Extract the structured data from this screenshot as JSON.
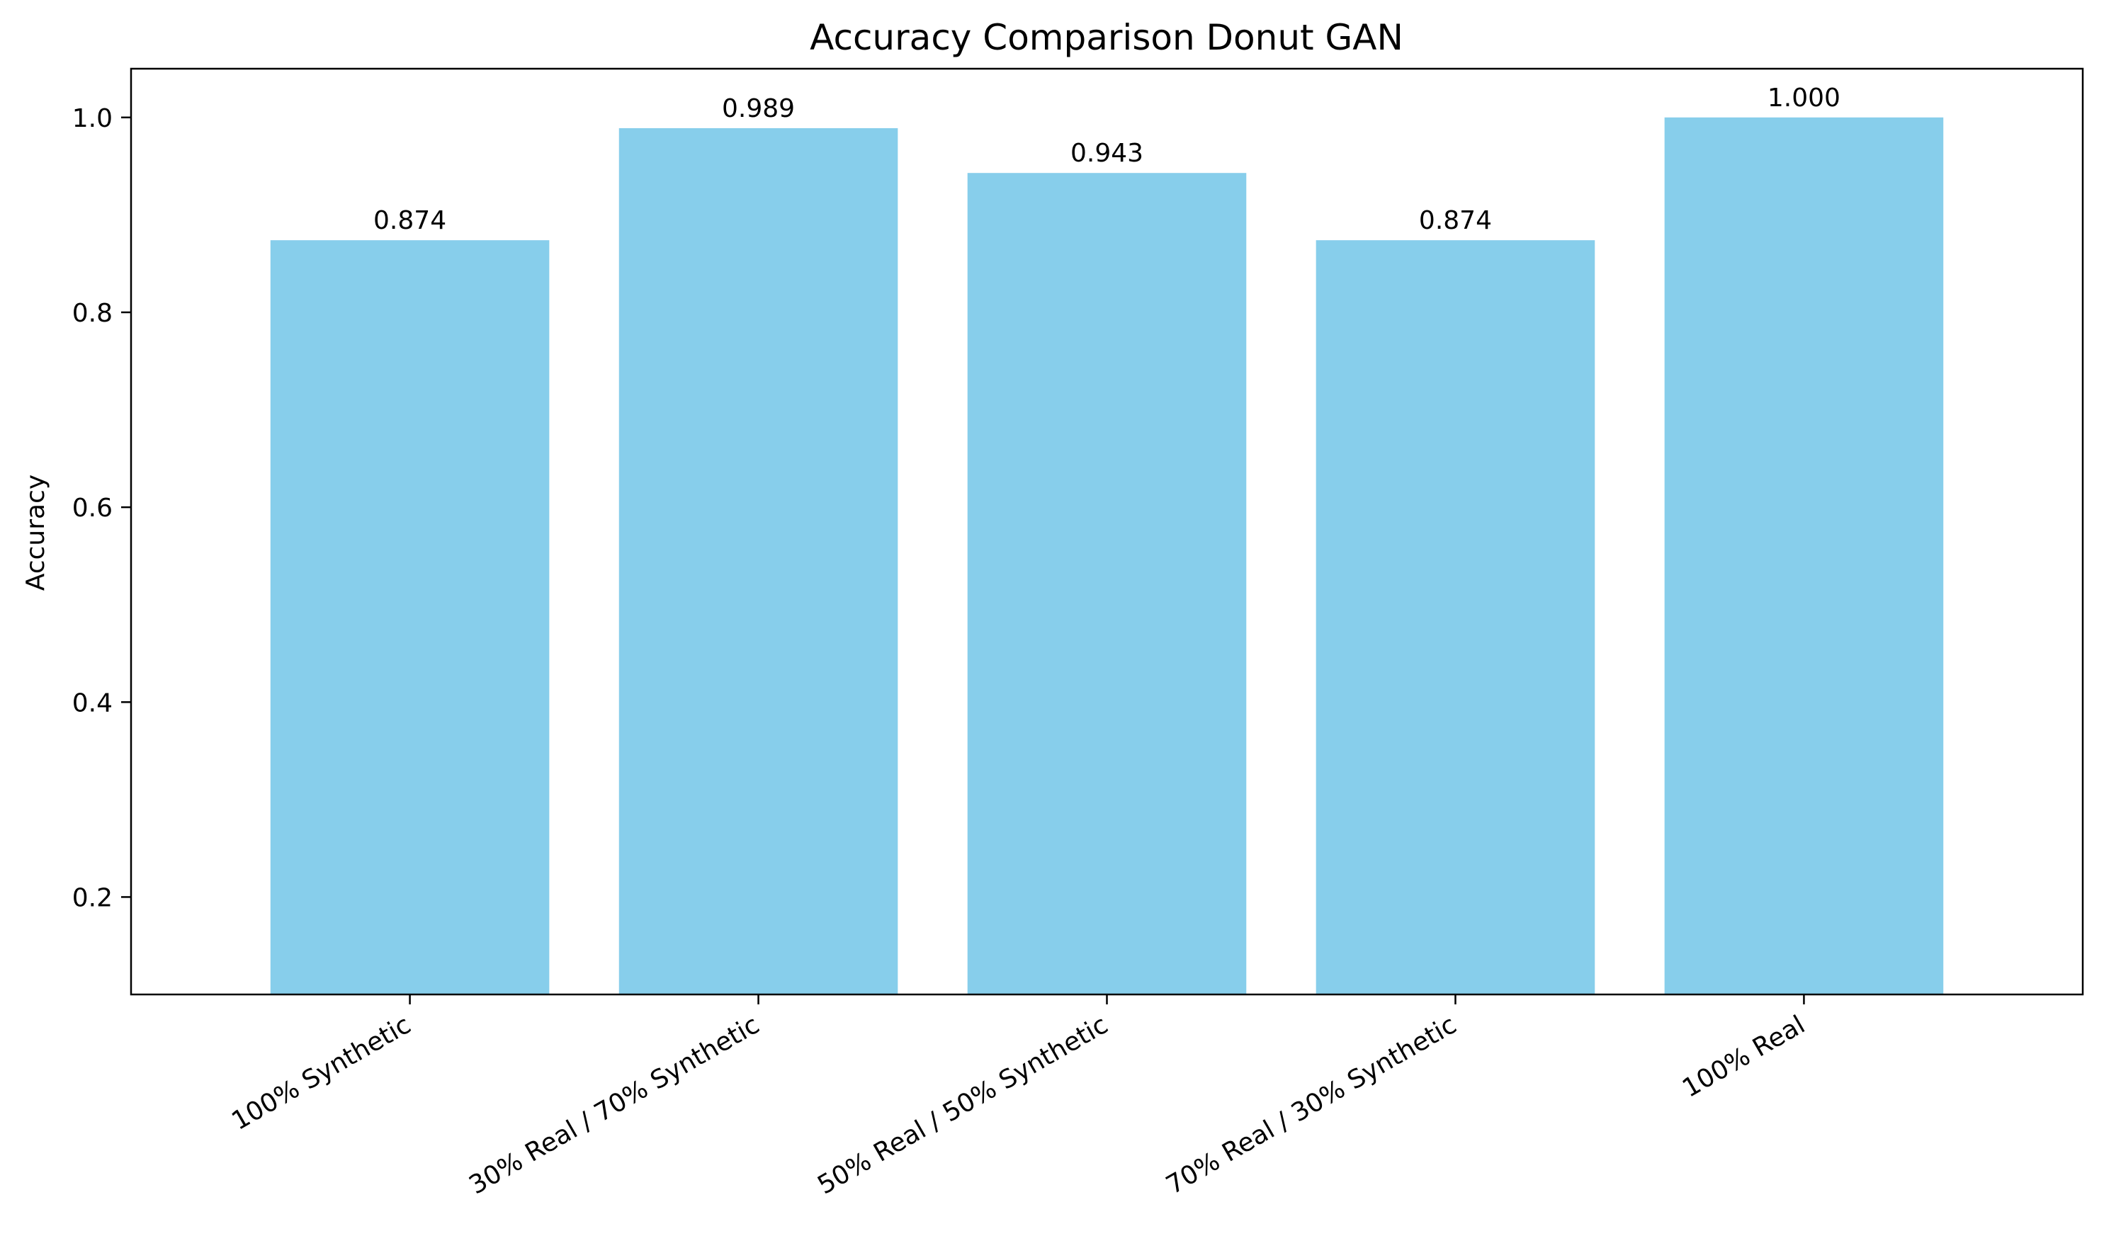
{
  "chart_data": {
    "type": "bar",
    "title": "Accuracy Comparison Donut GAN",
    "xlabel": "",
    "ylabel": "Accuracy",
    "categories": [
      "100% Synthetic",
      "30% Real / 70% Synthetic",
      "50% Real / 50% Synthetic",
      "70% Real / 30% Synthetic",
      "100% Real"
    ],
    "values": [
      0.874,
      0.989,
      0.943,
      0.874,
      1.0
    ],
    "value_labels": [
      "0.874",
      "0.989",
      "0.943",
      "0.874",
      "1.000"
    ],
    "ylim": [
      0.1,
      1.05
    ],
    "yticks": [
      0.2,
      0.4,
      0.6,
      0.8,
      1.0
    ],
    "ytick_labels": [
      "0.2",
      "0.4",
      "0.6",
      "0.8",
      "1.0"
    ],
    "bar_color": "#87ceeb",
    "grid": false,
    "legend": "none"
  }
}
